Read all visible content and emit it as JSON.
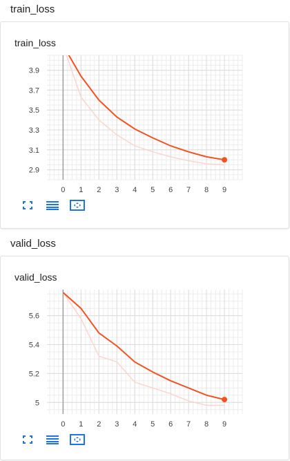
{
  "cards": [
    {
      "section_title": "train_loss",
      "card_title": "train_loss",
      "chart_data": {
        "type": "line",
        "title": "train_loss",
        "xlabel": "",
        "ylabel": "",
        "x": [
          0,
          1,
          2,
          3,
          4,
          5,
          6,
          7,
          8,
          9
        ],
        "xlim": [
          -0.9,
          10
        ],
        "ylim": [
          2.8,
          4.05
        ],
        "x_ticks": [
          "0",
          "1",
          "2",
          "3",
          "4",
          "5",
          "6",
          "7",
          "8",
          "9"
        ],
        "y_ticks": [
          2.9,
          3.1,
          3.3,
          3.5,
          3.7,
          3.9
        ],
        "y_tick_labels": [
          "2.9",
          "3.1",
          "3.3",
          "3.5",
          "3.7",
          "3.9"
        ],
        "grid": true,
        "series": [
          {
            "values": [
              4.15,
              3.63,
              3.4,
              3.25,
              3.14,
              3.08,
              3.03,
              2.99,
              2.96,
              2.95
            ],
            "color": "#fbd5cc",
            "style": "raw"
          },
          {
            "values": [
              4.15,
              3.84,
              3.6,
              3.43,
              3.31,
              3.22,
              3.14,
              3.08,
              3.03,
              3.0
            ],
            "color": "#f4511e",
            "style": "smoothed"
          }
        ]
      }
    },
    {
      "section_title": "valid_loss",
      "card_title": "valid_loss",
      "chart_data": {
        "type": "line",
        "title": "valid_loss",
        "xlabel": "",
        "ylabel": "",
        "x": [
          0,
          1,
          2,
          3,
          4,
          5,
          6,
          7,
          8,
          9
        ],
        "xlim": [
          -0.9,
          10
        ],
        "ylim": [
          4.92,
          5.78
        ],
        "x_ticks": [
          "0",
          "1",
          "2",
          "3",
          "4",
          "5",
          "6",
          "7",
          "8",
          "9"
        ],
        "y_ticks": [
          5.0,
          5.2,
          5.4,
          5.6
        ],
        "y_tick_labels": [
          "5",
          "5.2",
          "5.4",
          "5.6"
        ],
        "grid": true,
        "series": [
          {
            "values": [
              5.76,
              5.58,
              5.32,
              5.28,
              5.14,
              5.1,
              5.06,
              5.01,
              4.98,
              4.98
            ],
            "color": "#fbd5cc",
            "style": "raw"
          },
          {
            "values": [
              5.76,
              5.65,
              5.48,
              5.39,
              5.28,
              5.21,
              5.15,
              5.1,
              5.05,
              5.02
            ],
            "color": "#f4511e",
            "style": "smoothed"
          }
        ]
      }
    }
  ],
  "toolbar": {
    "icons": [
      "fit-domain-icon",
      "log-scale-icon",
      "fit-zoom-icon"
    ],
    "accent_color": "#1a73e8"
  }
}
